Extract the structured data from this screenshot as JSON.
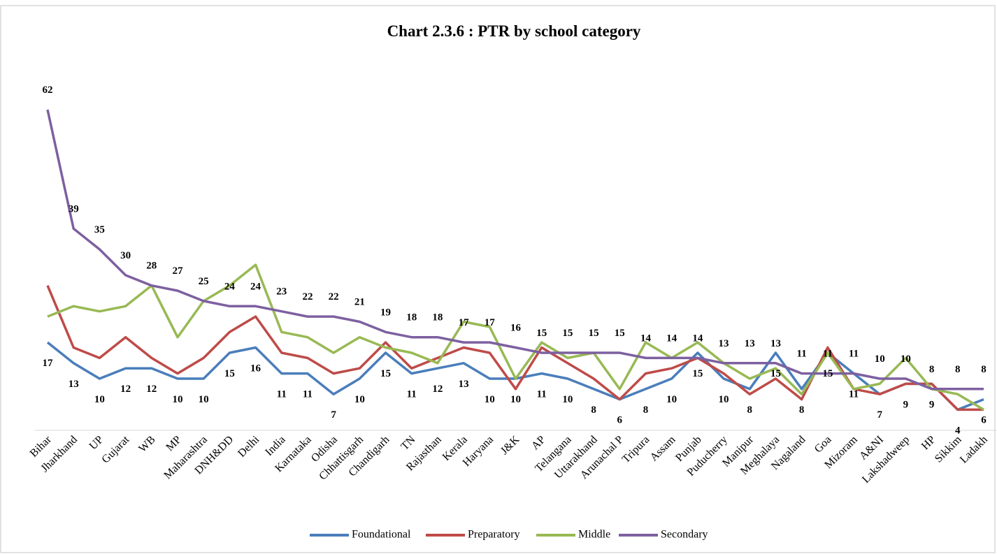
{
  "chart_data": {
    "type": "line",
    "title": "Chart 2.3.6 : PTR by school category",
    "categories": [
      "Bihar",
      "Jharkhand",
      "UP",
      "Gujarat",
      "WB",
      "MP",
      "Maharashtra",
      "DNH&DD",
      "Delhi",
      "India",
      "Karnataka",
      "Odisha",
      "Chhattisgarh",
      "Chandigarh",
      "TN",
      "Rajasthan",
      "Kerala",
      "Haryana",
      "J&K",
      "AP",
      "Telangana",
      "Uttarakhand",
      "Arunachal P",
      "Tripura",
      "Assam",
      "Punjab",
      "Puducherry",
      "Manipur",
      "Meghalaya",
      "Nagaland",
      "Goa",
      "Mizoram",
      "A&NI",
      "Lakshadweep",
      "HP",
      "Sikkim",
      "Ladakh"
    ],
    "series": [
      {
        "name": "Foundational",
        "color": "#4a7ebb",
        "data_labels": "below",
        "values": [
          17,
          13,
          10,
          12,
          12,
          10,
          10,
          15,
          16,
          11,
          11,
          7,
          10,
          15,
          11,
          12,
          13,
          10,
          10,
          11,
          10,
          8,
          6,
          8,
          10,
          15,
          10,
          8,
          15,
          8,
          15,
          11,
          7,
          9,
          9,
          4,
          6
        ]
      },
      {
        "name": "Preparatory",
        "color": "#be4b48",
        "values": [
          28,
          16,
          14,
          18,
          14,
          11,
          14,
          19,
          22,
          15,
          14,
          11,
          12,
          17,
          12,
          14,
          16,
          15,
          8,
          16,
          13,
          10,
          6,
          11,
          12,
          14,
          11,
          7,
          10,
          6,
          16,
          8,
          7,
          9,
          9,
          4,
          4
        ]
      },
      {
        "name": "Middle",
        "color": "#98b954",
        "values": [
          22,
          24,
          23,
          24,
          28,
          18,
          25,
          28,
          32,
          19,
          18,
          15,
          18,
          16,
          15,
          13,
          21,
          20,
          10,
          17,
          14,
          15,
          8,
          17,
          14,
          17,
          13,
          10,
          12,
          7,
          15,
          8,
          9,
          14,
          8,
          7,
          4
        ]
      },
      {
        "name": "Secondary",
        "color": "#7d60a0",
        "data_labels": "above",
        "values": [
          62,
          39,
          35,
          30,
          28,
          27,
          25,
          24,
          24,
          23,
          22,
          22,
          21,
          19,
          18,
          18,
          17,
          17,
          16,
          15,
          15,
          15,
          15,
          14,
          14,
          14,
          13,
          13,
          13,
          11,
          11,
          11,
          10,
          10,
          8,
          8,
          8
        ]
      }
    ],
    "ylim": [
      0,
      62
    ],
    "legend": "bottom"
  }
}
